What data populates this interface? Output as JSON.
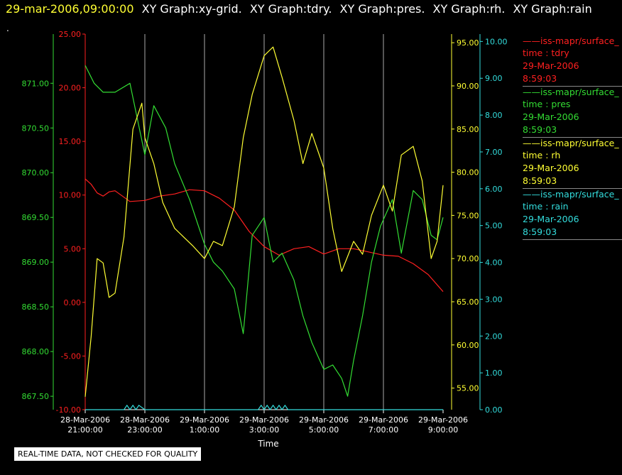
{
  "header": {
    "timestamp": "29-mar-2006,09:00:00",
    "graphs": [
      "XY Graph:xy-grid.",
      "XY Graph:tdry.",
      "XY Graph:pres.",
      "XY Graph:rh.",
      "XY Graph:rain"
    ],
    "dot": "."
  },
  "quality_note": "REAL-TIME DATA, NOT CHECKED FOR QUALITY",
  "legend": [
    {
      "name": "iss-mapr/surface_",
      "var": "time : tdry",
      "date": "29-Mar-2006",
      "time": "8:59:03",
      "color": "#ff2020"
    },
    {
      "name": "iss-mapr/surface_",
      "var": "time : pres",
      "date": "29-Mar-2006",
      "time": "8:59:03",
      "color": "#33dd33"
    },
    {
      "name": "iss-mapr/surface_",
      "var": "time : rh",
      "date": "29-Mar-2006",
      "time": "8:59:03",
      "color": "#ffff33"
    },
    {
      "name": "iss-mapr/surface_",
      "var": "time : rain",
      "date": "29-Mar-2006",
      "time": "8:59:03",
      "color": "#33dddd"
    }
  ],
  "colors": {
    "tdry": "#ff2020",
    "pres": "#33dd33",
    "rh": "#ffff33",
    "rain": "#33dddd",
    "grid": "#aaaaaa"
  },
  "chart_data": {
    "type": "line",
    "xlabel": "Time",
    "x_range": [
      "28-Mar-2006 21:00:00",
      "29-Mar-2006 9:00:00"
    ],
    "x_ticks": [
      {
        "hour": 21,
        "date": "28-Mar-2006",
        "time": "21:00:00"
      },
      {
        "hour": 23,
        "date": "28-Mar-2006",
        "time": "23:00:00"
      },
      {
        "hour": 25,
        "date": "29-Mar-2006",
        "time": "1:00:00"
      },
      {
        "hour": 27,
        "date": "29-Mar-2006",
        "time": "3:00:00"
      },
      {
        "hour": 29,
        "date": "29-Mar-2006",
        "time": "5:00:00"
      },
      {
        "hour": 31,
        "date": "29-Mar-2006",
        "time": "7:00:00"
      },
      {
        "hour": 33,
        "date": "29-Mar-2006",
        "time": "9:00:00"
      }
    ],
    "grid": true,
    "axes": {
      "pres": {
        "ylim": [
          867.35,
          871.55
        ],
        "ticks": [
          "871.00",
          "870.50",
          "870.00",
          "869.50",
          "869.00",
          "868.50",
          "868.00",
          "867.50"
        ]
      },
      "tdry": {
        "ylim": [
          -10,
          25
        ],
        "ticks": [
          "25.00",
          "20.00",
          "15.00",
          "10.00",
          "5.00",
          "0.00",
          "-5.00",
          "-10.00"
        ]
      },
      "rh": {
        "ylim": [
          52.5,
          96.0
        ],
        "ticks": [
          "95.00",
          "90.00",
          "85.00",
          "80.00",
          "75.00",
          "70.00",
          "65.00",
          "60.00",
          "55.00"
        ]
      },
      "rain": {
        "ylim": [
          0,
          10.2
        ],
        "ticks": [
          "10.00",
          "9.00",
          "8.00",
          "7.00",
          "6.00",
          "5.00",
          "4.00",
          "3.00",
          "2.00",
          "1.00",
          "0.00"
        ]
      }
    },
    "series": [
      {
        "name": "time : tdry",
        "axis": "tdry",
        "x": [
          21.0,
          21.2,
          21.4,
          21.6,
          21.8,
          22.0,
          22.5,
          23.0,
          23.5,
          24.0,
          24.5,
          25.0,
          25.5,
          26.0,
          26.5,
          27.0,
          27.5,
          28.0,
          28.5,
          29.0,
          29.5,
          30.0,
          30.5,
          31.0,
          31.5,
          32.0,
          32.5,
          33.0
        ],
        "y": [
          11.5,
          11.0,
          10.2,
          9.9,
          10.3,
          10.4,
          9.4,
          9.5,
          9.9,
          10.1,
          10.5,
          10.4,
          9.7,
          8.6,
          6.6,
          5.2,
          4.4,
          5.0,
          5.2,
          4.5,
          5.0,
          5.0,
          4.7,
          4.4,
          4.3,
          3.6,
          2.6,
          1.0
        ]
      },
      {
        "name": "time : pres",
        "axis": "pres",
        "x": [
          21.0,
          21.3,
          21.6,
          22.0,
          22.5,
          23.0,
          23.3,
          23.7,
          24.0,
          24.5,
          25.0,
          25.3,
          25.6,
          26.0,
          26.3,
          26.6,
          27.0,
          27.3,
          27.6,
          28.0,
          28.3,
          28.6,
          29.0,
          29.3,
          29.6,
          29.8,
          30.0,
          30.3,
          30.6,
          30.9,
          31.3,
          31.6,
          32.0,
          32.3,
          32.6,
          32.8,
          33.0
        ],
        "y": [
          871.2,
          871.0,
          870.9,
          870.9,
          871.0,
          870.2,
          870.75,
          870.5,
          870.1,
          869.7,
          869.2,
          869.0,
          868.9,
          868.7,
          868.2,
          869.3,
          869.5,
          869.0,
          869.1,
          868.8,
          868.4,
          868.1,
          867.8,
          867.85,
          867.7,
          867.5,
          867.9,
          868.4,
          869.0,
          869.4,
          869.7,
          869.1,
          869.8,
          869.7,
          869.3,
          869.25,
          869.5
        ]
      },
      {
        "name": "time : rh",
        "axis": "rh",
        "x": [
          21.0,
          21.2,
          21.4,
          21.6,
          21.8,
          22.0,
          22.3,
          22.6,
          22.9,
          23.0,
          23.3,
          23.6,
          24.0,
          24.3,
          24.6,
          25.0,
          25.3,
          25.6,
          26.0,
          26.3,
          26.6,
          27.0,
          27.3,
          27.6,
          28.0,
          28.3,
          28.6,
          29.0,
          29.3,
          29.6,
          30.0,
          30.3,
          30.6,
          31.0,
          31.3,
          31.6,
          32.0,
          32.3,
          32.6,
          32.8,
          33.0
        ],
        "y": [
          54.0,
          61.0,
          70.0,
          69.5,
          65.5,
          66.0,
          72.5,
          85.0,
          88.0,
          84.0,
          81.0,
          76.5,
          73.5,
          72.5,
          71.5,
          70.0,
          72.0,
          71.5,
          76.0,
          84.0,
          89.0,
          93.5,
          94.5,
          91.0,
          86.0,
          81.0,
          84.5,
          80.5,
          73.5,
          68.5,
          72.0,
          70.5,
          75.0,
          78.5,
          75.5,
          82.0,
          83.0,
          79.0,
          70.0,
          72.0,
          78.5
        ]
      },
      {
        "name": "time : rain",
        "axis": "rain",
        "x": [
          21.0,
          22.3,
          22.4,
          22.5,
          22.6,
          22.7,
          22.8,
          23.0,
          26.8,
          26.9,
          27.0,
          27.1,
          27.2,
          27.3,
          27.4,
          27.5,
          27.6,
          27.7,
          27.8,
          28.0,
          33.0
        ],
        "y": [
          0.0,
          0.0,
          0.12,
          0.0,
          0.12,
          0.0,
          0.12,
          0.0,
          0.0,
          0.12,
          0.0,
          0.12,
          0.0,
          0.12,
          0.0,
          0.12,
          0.0,
          0.12,
          0.0,
          0.0,
          0.0
        ]
      }
    ]
  }
}
